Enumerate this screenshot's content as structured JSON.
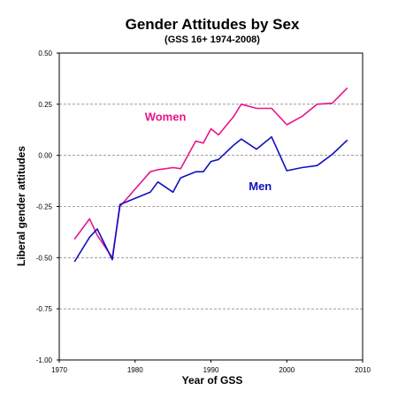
{
  "chart_data": {
    "type": "line",
    "title": "Gender Attitudes by Sex",
    "subtitle": "(GSS 16+ 1974-2008)",
    "xlabel": "Year of GSS",
    "ylabel": "Liberal gender attitudes",
    "xlim": [
      1970,
      2010
    ],
    "ylim": [
      -1.0,
      0.5
    ],
    "x_ticks": [
      "1970",
      "1980",
      "1990",
      "2000",
      "2010"
    ],
    "y_ticks": [
      "-1.00",
      "-0.75",
      "-0.50",
      "-0.25",
      "0.00",
      "0.25",
      "0.50"
    ],
    "grid": "horizontal dashed",
    "series": [
      {
        "name": "Women",
        "color": "#e8158a",
        "label_at": [
          1984,
          0.17
        ],
        "points": [
          [
            1972,
            -0.41
          ],
          [
            1974,
            -0.31
          ],
          [
            1975,
            -0.39
          ],
          [
            1977,
            -0.5
          ],
          [
            1978,
            -0.25
          ],
          [
            1982,
            -0.08
          ],
          [
            1983,
            -0.07
          ],
          [
            1985,
            -0.06
          ],
          [
            1986,
            -0.065
          ],
          [
            1988,
            0.07
          ],
          [
            1989,
            0.06
          ],
          [
            1990,
            0.13
          ],
          [
            1991,
            0.1
          ],
          [
            1993,
            0.19
          ],
          [
            1994,
            0.25
          ],
          [
            1996,
            0.23
          ],
          [
            1998,
            0.23
          ],
          [
            2000,
            0.15
          ],
          [
            2002,
            0.19
          ],
          [
            2004,
            0.25
          ],
          [
            2006,
            0.255
          ],
          [
            2008,
            0.33
          ]
        ]
      },
      {
        "name": "Men",
        "color": "#1010c0",
        "label_at": [
          1996.5,
          -0.17
        ],
        "points": [
          [
            1972,
            -0.52
          ],
          [
            1974,
            -0.4
          ],
          [
            1975,
            -0.36
          ],
          [
            1977,
            -0.51
          ],
          [
            1978,
            -0.24
          ],
          [
            1982,
            -0.18
          ],
          [
            1983,
            -0.13
          ],
          [
            1985,
            -0.18
          ],
          [
            1986,
            -0.11
          ],
          [
            1988,
            -0.08
          ],
          [
            1989,
            -0.08
          ],
          [
            1990,
            -0.03
          ],
          [
            1991,
            -0.02
          ],
          [
            1993,
            0.05
          ],
          [
            1994,
            0.08
          ],
          [
            1996,
            0.03
          ],
          [
            1998,
            0.09
          ],
          [
            2000,
            -0.075
          ],
          [
            2002,
            -0.06
          ],
          [
            2004,
            -0.05
          ],
          [
            2006,
            0.005
          ],
          [
            2008,
            0.075
          ]
        ]
      }
    ]
  }
}
